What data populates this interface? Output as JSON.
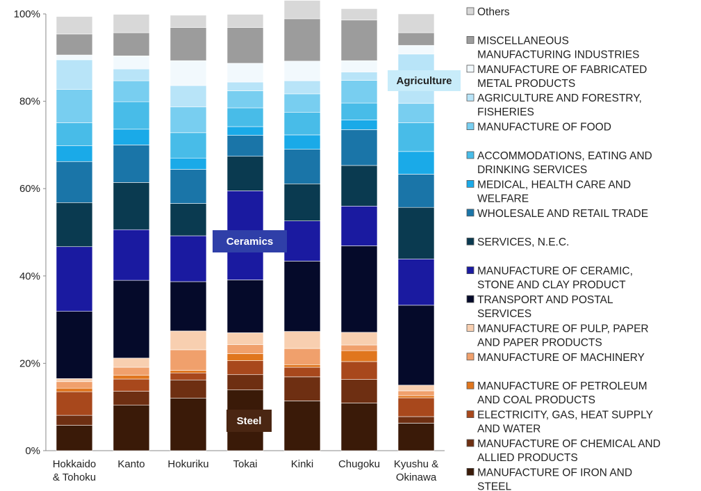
{
  "chart_data": {
    "type": "bar",
    "stacked": true,
    "ylim": [
      0,
      100
    ],
    "y_ticks": [
      "0%",
      "20%",
      "40%",
      "60%",
      "80%",
      "100%"
    ],
    "categories": [
      [
        "Hokkaido",
        "& Tohoku"
      ],
      [
        "Kanto"
      ],
      [
        "Hokuriku"
      ],
      [
        "Tokai"
      ],
      [
        "Kinki"
      ],
      [
        "Chugoku"
      ],
      [
        "Kyushu &",
        "Okinawa"
      ]
    ],
    "series": [
      {
        "name": [
          "MANUFACTURE OF IRON AND",
          "STEEL"
        ],
        "color": "#3a1a08",
        "values": [
          5.8,
          10.4,
          12.0,
          13.9,
          11.4,
          10.9,
          6.3
        ]
      },
      {
        "name": [
          "MANUFACTURE OF CHEMICAL AND",
          "ALLIED PRODUCTS"
        ],
        "color": "#6e2f12",
        "values": [
          2.3,
          3.2,
          4.2,
          3.5,
          5.5,
          5.4,
          1.5
        ]
      },
      {
        "name": [
          "ELECTRICITY, GAS, HEAT SUPPLY",
          "AND WATER"
        ],
        "color": "#a8481c",
        "values": [
          5.4,
          2.8,
          1.6,
          3.2,
          2.2,
          4.1,
          4.3
        ]
      },
      {
        "name": [
          "MANUFACTURE OF PETROLEUM",
          "AND COAL PRODUCTS"
        ],
        "color": "#e0761e",
        "values": [
          0.8,
          0.9,
          0.6,
          1.6,
          0.6,
          2.5,
          0.5
        ]
      },
      {
        "name": [
          "MANUFACTURE OF MACHINERY"
        ],
        "color": "#f0a06c",
        "values": [
          1.5,
          1.8,
          4.7,
          2.1,
          3.7,
          1.3,
          1.1
        ]
      },
      {
        "name": [
          "MANUFACTURE OF PULP, PAPER",
          "AND PAPER PRODUCTS"
        ],
        "color": "#f8cfb0",
        "values": [
          0.7,
          2.1,
          4.3,
          2.7,
          3.9,
          2.9,
          1.3
        ]
      },
      {
        "name": [
          "TRANSPORT AND POSTAL",
          "SERVICES"
        ],
        "color": "#050a2a",
        "values": [
          15.4,
          17.8,
          11.3,
          12.1,
          16.1,
          19.8,
          18.3
        ]
      },
      {
        "name": [
          "MANUFACTURE OF CERAMIC,",
          "STONE AND CLAY PRODUCT"
        ],
        "color": "#1a1aa0",
        "values": [
          14.8,
          11.6,
          10.5,
          20.4,
          9.2,
          9.1,
          10.6
        ]
      },
      {
        "name": [
          "SERVICES, N.E.C."
        ],
        "color": "#0a3a50",
        "values": [
          10.1,
          10.8,
          7.4,
          7.9,
          8.5,
          9.3,
          11.8
        ]
      },
      {
        "name": [
          "WHOLESALE AND RETAIL TRADE"
        ],
        "color": "#1a75a8",
        "values": [
          9.4,
          8.6,
          7.8,
          4.8,
          7.9,
          8.2,
          7.6
        ]
      },
      {
        "name": [
          "MEDICAL, HEALTH CARE AND",
          "WELFARE"
        ],
        "color": "#1aaae8",
        "values": [
          3.6,
          3.6,
          2.6,
          2.0,
          3.3,
          2.2,
          5.2
        ]
      },
      {
        "name": [
          "ACCOMMODATIONS, EATING AND",
          "DRINKING SERVICES"
        ],
        "color": "#48bce8",
        "values": [
          5.3,
          6.3,
          5.8,
          4.3,
          5.2,
          3.9,
          6.6
        ]
      },
      {
        "name": [
          "MANUFACTURE OF FOOD"
        ],
        "color": "#78cef0",
        "values": [
          7.6,
          4.8,
          5.9,
          3.9,
          4.2,
          5.2,
          4.4
        ]
      },
      {
        "name": [
          "AGRICULTURE AND FORESTRY,",
          "FISHERIES"
        ],
        "color": "#b8e4f8",
        "values": [
          6.8,
          2.7,
          4.9,
          2.0,
          3.0,
          1.9,
          11.3
        ]
      },
      {
        "name": [
          "MANUFACTURE OF FABRICATED",
          "METAL PRODUCTS"
        ],
        "color": "#f2f9fd",
        "values": [
          1.1,
          3.0,
          5.7,
          4.3,
          4.5,
          2.6,
          2.0
        ]
      },
      {
        "name": [
          "MISCELLANEOUS",
          "MANUFACTURING INDUSTRIES"
        ],
        "color": "#9c9c9c",
        "values": [
          4.8,
          5.3,
          7.6,
          8.2,
          9.7,
          9.3,
          2.9
        ]
      },
      {
        "name": [
          "Others"
        ],
        "color": "#d8d8d8",
        "values": [
          4.0,
          4.2,
          2.8,
          3.0,
          4.2,
          2.6,
          4.3
        ]
      }
    ],
    "annotations": [
      {
        "text": "Agriculture",
        "bg": "#c8ecfa",
        "fg": "#222222"
      },
      {
        "text": "Ceramics",
        "bg": "#2f3fa8",
        "fg": "#ffffff"
      },
      {
        "text": "Steel",
        "bg": "#4a2612",
        "fg": "#ffffff"
      }
    ]
  }
}
